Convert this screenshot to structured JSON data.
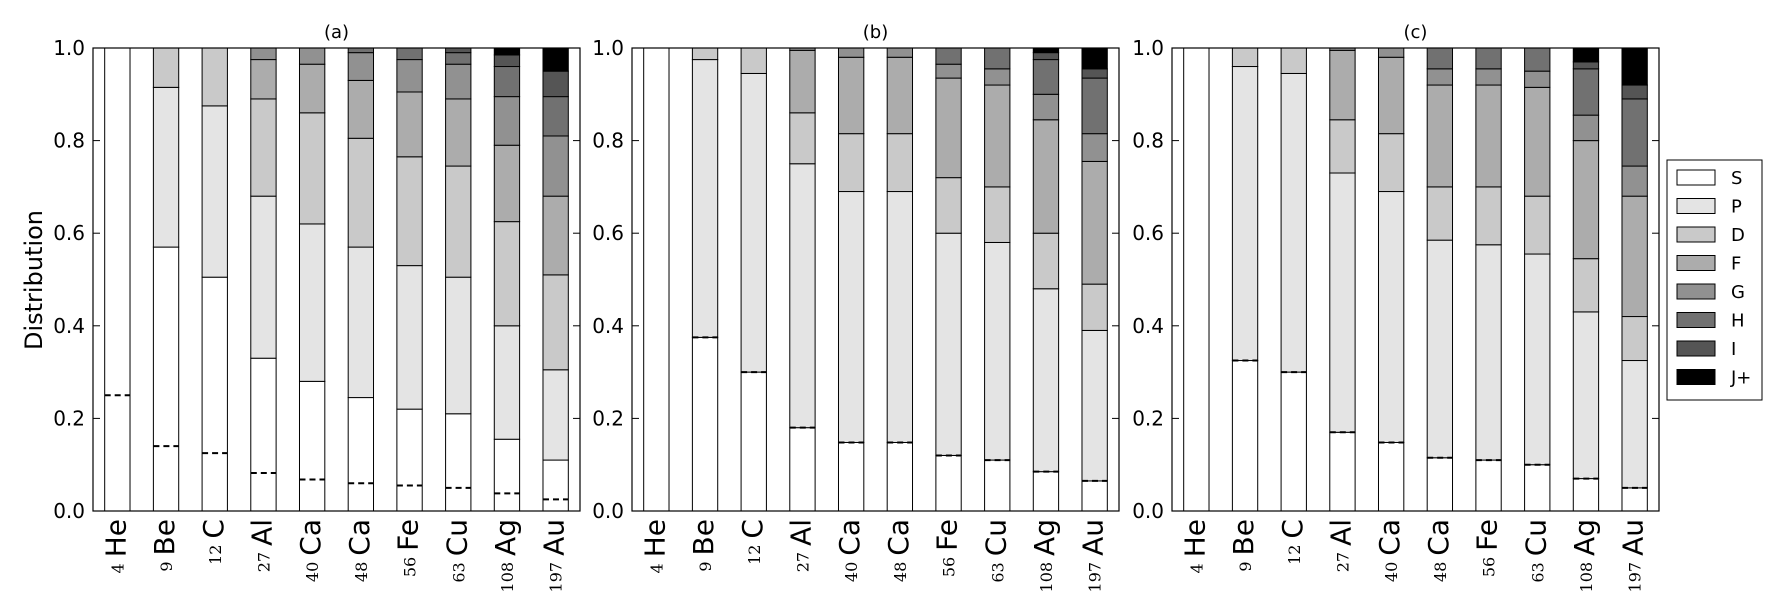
{
  "chart_data": {
    "type": "bar",
    "stacked": true,
    "ylabel": "Distribution",
    "ylim": [
      0,
      1.0
    ],
    "yticks": [
      "0.0",
      "0.2",
      "0.4",
      "0.6",
      "0.8",
      "1.0"
    ],
    "categories": [
      {
        "mass": "4",
        "symbol": "He"
      },
      {
        "mass": "9",
        "symbol": "Be"
      },
      {
        "mass": "12",
        "symbol": "C"
      },
      {
        "mass": "27",
        "symbol": "Al"
      },
      {
        "mass": "40",
        "symbol": "Ca"
      },
      {
        "mass": "48",
        "symbol": "Ca"
      },
      {
        "mass": "56",
        "symbol": "Fe"
      },
      {
        "mass": "63",
        "symbol": "Cu"
      },
      {
        "mass": "108",
        "symbol": "Ag"
      },
      {
        "mass": "197",
        "symbol": "Au"
      }
    ],
    "legend": {
      "position": "right",
      "labels": [
        "S",
        "P",
        "D",
        "F",
        "G",
        "H",
        "I",
        "J+"
      ],
      "colors": [
        "#ffffff",
        "#e4e4e4",
        "#c9c9c9",
        "#acacac",
        "#919191",
        "#717171",
        "#555555",
        "#000000"
      ]
    },
    "panels": [
      {
        "title": "(a)",
        "cumulative": [
          [
            1.0,
            1.0,
            1.0,
            1.0,
            1.0,
            1.0,
            1.0,
            1.0
          ],
          [
            0.57,
            0.915,
            1.0,
            1.0,
            1.0,
            1.0,
            1.0,
            1.0
          ],
          [
            0.505,
            0.875,
            1.0,
            1.0,
            1.0,
            1.0,
            1.0,
            1.0
          ],
          [
            0.33,
            0.68,
            0.89,
            0.975,
            1.0,
            1.0,
            1.0,
            1.0
          ],
          [
            0.28,
            0.62,
            0.86,
            0.965,
            1.0,
            1.0,
            1.0,
            1.0
          ],
          [
            0.245,
            0.57,
            0.805,
            0.93,
            0.99,
            1.0,
            1.0,
            1.0
          ],
          [
            0.22,
            0.53,
            0.765,
            0.905,
            0.975,
            1.0,
            1.0,
            1.0
          ],
          [
            0.21,
            0.505,
            0.745,
            0.89,
            0.965,
            0.99,
            1.0,
            1.0
          ],
          [
            0.155,
            0.4,
            0.625,
            0.79,
            0.895,
            0.96,
            0.985,
            1.0
          ],
          [
            0.11,
            0.305,
            0.51,
            0.68,
            0.81,
            0.895,
            0.95,
            1.0
          ]
        ],
        "dashed": [
          0.25,
          0.14,
          0.125,
          0.082,
          0.068,
          0.06,
          0.055,
          0.05,
          0.038,
          0.025
        ]
      },
      {
        "title": "(b)",
        "cumulative": [
          [
            1.0,
            1.0,
            1.0,
            1.0,
            1.0,
            1.0,
            1.0,
            1.0
          ],
          [
            0.375,
            0.975,
            1.0,
            1.0,
            1.0,
            1.0,
            1.0,
            1.0
          ],
          [
            0.3,
            0.945,
            1.0,
            1.0,
            1.0,
            1.0,
            1.0,
            1.0
          ],
          [
            0.18,
            0.75,
            0.86,
            0.995,
            1.0,
            1.0,
            1.0,
            1.0
          ],
          [
            0.148,
            0.69,
            0.815,
            0.98,
            1.0,
            1.0,
            1.0,
            1.0
          ],
          [
            0.148,
            0.69,
            0.815,
            0.98,
            1.0,
            1.0,
            1.0,
            1.0
          ],
          [
            0.12,
            0.6,
            0.72,
            0.935,
            0.965,
            1.0,
            1.0,
            1.0
          ],
          [
            0.11,
            0.58,
            0.7,
            0.92,
            0.955,
            1.0,
            1.0,
            1.0
          ],
          [
            0.085,
            0.48,
            0.6,
            0.845,
            0.9,
            0.975,
            0.99,
            1.0
          ],
          [
            0.065,
            0.39,
            0.49,
            0.755,
            0.815,
            0.935,
            0.955,
            1.0
          ]
        ],
        "dashed": [
          null,
          0.375,
          0.3,
          0.18,
          0.148,
          0.148,
          0.12,
          0.11,
          0.085,
          0.065
        ]
      },
      {
        "title": "(c)",
        "cumulative": [
          [
            1.0,
            1.0,
            1.0,
            1.0,
            1.0,
            1.0,
            1.0,
            1.0
          ],
          [
            0.325,
            0.96,
            1.0,
            1.0,
            1.0,
            1.0,
            1.0,
            1.0
          ],
          [
            0.3,
            0.945,
            1.0,
            1.0,
            1.0,
            1.0,
            1.0,
            1.0
          ],
          [
            0.17,
            0.73,
            0.845,
            0.995,
            1.0,
            1.0,
            1.0,
            1.0
          ],
          [
            0.148,
            0.69,
            0.815,
            0.98,
            1.0,
            1.0,
            1.0,
            1.0
          ],
          [
            0.115,
            0.585,
            0.7,
            0.92,
            0.955,
            1.0,
            1.0,
            1.0
          ],
          [
            0.11,
            0.575,
            0.7,
            0.92,
            0.955,
            1.0,
            1.0,
            1.0
          ],
          [
            0.1,
            0.555,
            0.68,
            0.915,
            0.95,
            1.0,
            1.0,
            1.0
          ],
          [
            0.07,
            0.43,
            0.545,
            0.8,
            0.855,
            0.955,
            0.97,
            1.0
          ],
          [
            0.05,
            0.325,
            0.42,
            0.68,
            0.745,
            0.89,
            0.92,
            1.0
          ]
        ],
        "dashed": [
          null,
          0.325,
          0.3,
          0.17,
          0.148,
          0.115,
          0.11,
          0.1,
          0.07,
          0.05
        ]
      }
    ]
  }
}
